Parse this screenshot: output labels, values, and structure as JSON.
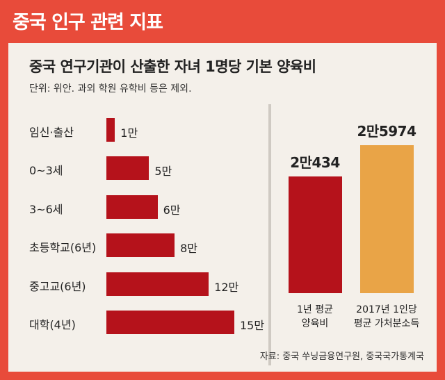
{
  "header": {
    "title": "중국 인구 관련 지표"
  },
  "chart_data": [
    {
      "type": "bar",
      "orientation": "horizontal",
      "title": "중국 연구기관이 산출한 자녀 1명당 기본 양육비",
      "subtitle": "단위: 위안. 과외 학원 유학비 등은 제외.",
      "categories": [
        "임신·출산",
        "0~3세",
        "3~6세",
        "초등학교(6년)",
        "중고교(6년)",
        "대학(4년)"
      ],
      "values": [
        1,
        5,
        6,
        8,
        12,
        15
      ],
      "value_labels": [
        "1만",
        "5만",
        "6만",
        "8만",
        "12만",
        "15만"
      ],
      "unit_note": "만 위안",
      "xlim": [
        0,
        15
      ],
      "grid": false,
      "color": "#b5121b"
    },
    {
      "type": "bar",
      "orientation": "vertical",
      "categories": [
        "1년 평균\n양육비",
        "2017년 1인당\n평균 가처분소득"
      ],
      "values": [
        20434,
        25974
      ],
      "value_labels": [
        "2만434",
        "2만5974"
      ],
      "colors": [
        "#b5121b",
        "#e9a447"
      ],
      "ylim": [
        0,
        25974
      ],
      "grid": false
    }
  ],
  "source": "자료: 중국 쑤닝금융연구원, 중국국가통계국"
}
